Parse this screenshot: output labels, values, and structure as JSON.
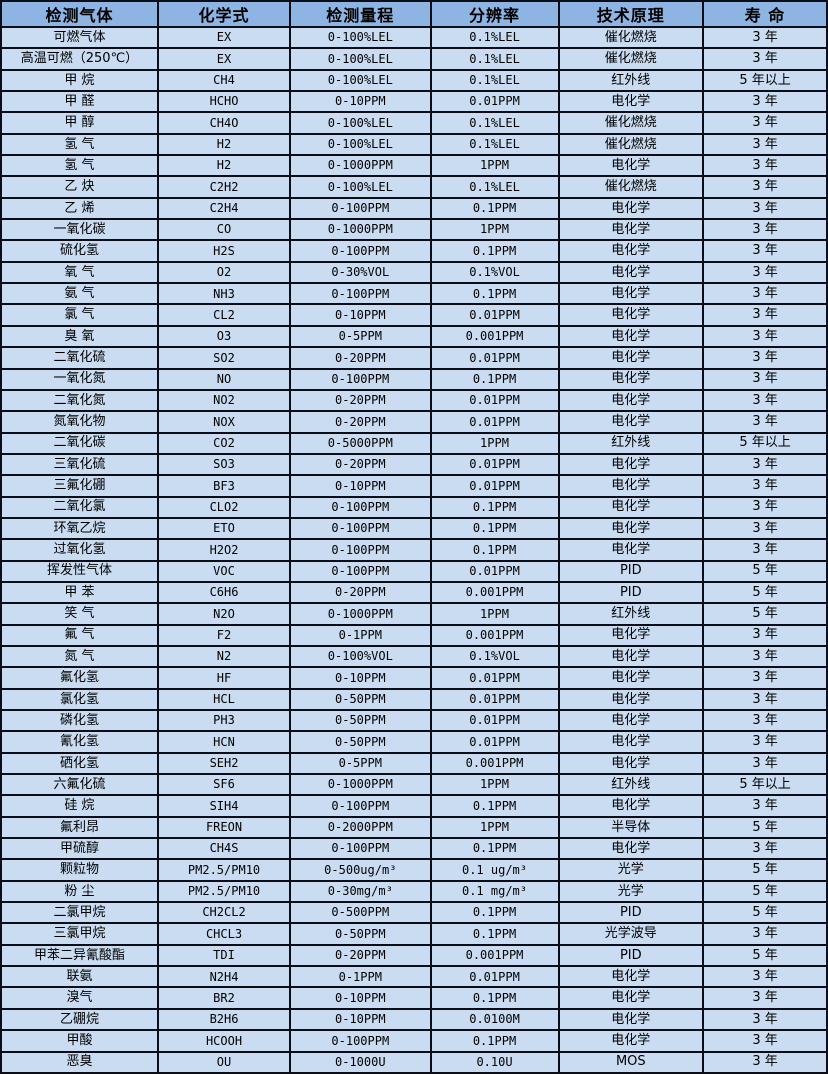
{
  "colors": {
    "header_bg": "#8eb4e3",
    "row_bg": "#c9dcf1",
    "border": "#0d0d18",
    "text": "#000000"
  },
  "table": {
    "columns": [
      {
        "key": "gas",
        "label": "检测气体",
        "mono": false
      },
      {
        "key": "formula",
        "label": "化学式",
        "mono": true
      },
      {
        "key": "range",
        "label": "检测量程",
        "mono": true
      },
      {
        "key": "resolution",
        "label": "分辨率",
        "mono": true
      },
      {
        "key": "principle",
        "label": "技术原理",
        "mono": false
      },
      {
        "key": "lifespan",
        "label": "寿 命",
        "mono": false
      }
    ],
    "rows": [
      [
        "可燃气体",
        "EX",
        "0-100%LEL",
        "0.1%LEL",
        "催化燃烧",
        "3 年"
      ],
      [
        "高温可燃（250℃）",
        "EX",
        "0-100%LEL",
        "0.1%LEL",
        "催化燃烧",
        "3 年"
      ],
      [
        "甲 烷",
        "CH4",
        "0-100%LEL",
        "0.1%LEL",
        "红外线",
        "5 年以上"
      ],
      [
        "甲 醛",
        "HCHO",
        "0-10PPM",
        "0.01PPM",
        "电化学",
        "3 年"
      ],
      [
        "甲 醇",
        "CH4O",
        "0-100%LEL",
        "0.1%LEL",
        "催化燃烧",
        "3 年"
      ],
      [
        "氢 气",
        "H2",
        "0-100%LEL",
        "0.1%LEL",
        "催化燃烧",
        "3 年"
      ],
      [
        "氢 气",
        "H2",
        "0-1000PPM",
        "1PPM",
        "电化学",
        "3 年"
      ],
      [
        "乙 炔",
        "C2H2",
        "0-100%LEL",
        "0.1%LEL",
        "催化燃烧",
        "3 年"
      ],
      [
        "乙 烯",
        "C2H4",
        "0-100PPM",
        "0.1PPM",
        "电化学",
        "3 年"
      ],
      [
        "一氧化碳",
        "CO",
        "0-1000PPM",
        "1PPM",
        "电化学",
        "3 年"
      ],
      [
        "硫化氢",
        "H2S",
        "0-100PPM",
        "0.1PPM",
        "电化学",
        "3 年"
      ],
      [
        "氧 气",
        "O2",
        "0-30%VOL",
        "0.1%VOL",
        "电化学",
        "3 年"
      ],
      [
        "氨 气",
        "NH3",
        "0-100PPM",
        "0.1PPM",
        "电化学",
        "3 年"
      ],
      [
        "氯 气",
        "CL2",
        "0-10PPM",
        "0.01PPM",
        "电化学",
        "3 年"
      ],
      [
        "臭 氧",
        "O3",
        "0-5PPM",
        "0.001PPM",
        "电化学",
        "3 年"
      ],
      [
        "二氧化硫",
        "SO2",
        "0-20PPM",
        "0.01PPM",
        "电化学",
        "3 年"
      ],
      [
        "一氧化氮",
        "NO",
        "0-100PPM",
        "0.1PPM",
        "电化学",
        "3 年"
      ],
      [
        "二氧化氮",
        "NO2",
        "0-20PPM",
        "0.01PPM",
        "电化学",
        "3 年"
      ],
      [
        "氮氧化物",
        "NOX",
        "0-20PPM",
        "0.01PPM",
        "电化学",
        "3 年"
      ],
      [
        "二氧化碳",
        "CO2",
        "0-5000PPM",
        "1PPM",
        "红外线",
        "5 年以上"
      ],
      [
        "三氧化硫",
        "SO3",
        "0-20PPM",
        "0.01PPM",
        "电化学",
        "3 年"
      ],
      [
        "三氟化硼",
        "BF3",
        "0-10PPM",
        "0.01PPM",
        "电化学",
        "3 年"
      ],
      [
        "二氧化氯",
        "CLO2",
        "0-100PPM",
        "0.1PPM",
        "电化学",
        "3 年"
      ],
      [
        "环氧乙烷",
        "ETO",
        "0-100PPM",
        "0.1PPM",
        "电化学",
        "3 年"
      ],
      [
        "过氧化氢",
        "H2O2",
        "0-100PPM",
        "0.1PPM",
        "电化学",
        "3 年"
      ],
      [
        "挥发性气体",
        "VOC",
        "0-100PPM",
        "0.01PPM",
        "PID",
        "5 年"
      ],
      [
        "甲 苯",
        "C6H6",
        "0-20PPM",
        "0.001PPM",
        "PID",
        "5 年"
      ],
      [
        "笑 气",
        "N2O",
        "0-1000PPM",
        "1PPM",
        "红外线",
        "5 年"
      ],
      [
        "氟 气",
        "F2",
        "0-1PPM",
        "0.001PPM",
        "电化学",
        "3 年"
      ],
      [
        "氮 气",
        "N2",
        "0-100%VOL",
        "0.1%VOL",
        "电化学",
        "3 年"
      ],
      [
        "氟化氢",
        "HF",
        "0-10PPM",
        "0.01PPM",
        "电化学",
        "3 年"
      ],
      [
        "氯化氢",
        "HCL",
        "0-50PPM",
        "0.01PPM",
        "电化学",
        "3 年"
      ],
      [
        "磷化氢",
        "PH3",
        "0-50PPM",
        "0.01PPM",
        "电化学",
        "3 年"
      ],
      [
        "氰化氢",
        "HCN",
        "0-50PPM",
        "0.01PPM",
        "电化学",
        "3 年"
      ],
      [
        "硒化氢",
        "SEH2",
        "0-5PPM",
        "0.001PPM",
        "电化学",
        "3 年"
      ],
      [
        "六氟化硫",
        "SF6",
        "0-1000PPM",
        "1PPM",
        "红外线",
        "5 年以上"
      ],
      [
        "硅 烷",
        "SIH4",
        "0-100PPM",
        "0.1PPM",
        "电化学",
        "3 年"
      ],
      [
        "氟利昂",
        "FREON",
        "0-2000PPM",
        "1PPM",
        "半导体",
        "5 年"
      ],
      [
        "甲硫醇",
        "CH4S",
        "0-100PPM",
        "0.1PPM",
        "电化学",
        "3 年"
      ],
      [
        "颗粒物",
        "PM2.5/PM10",
        "0-500ug/m³",
        "0.1 ug/m³",
        "光学",
        "5 年"
      ],
      [
        "粉 尘",
        "PM2.5/PM10",
        "0-30mg/m³",
        "0.1 mg/m³",
        "光学",
        "5 年"
      ],
      [
        "二氯甲烷",
        "CH2CL2",
        "0-500PPM",
        "0.1PPM",
        "PID",
        "5 年"
      ],
      [
        "三氯甲烷",
        "CHCL3",
        "0-50PPM",
        "0.1PPM",
        "光学波导",
        "3 年"
      ],
      [
        "甲苯二异氰酸酯",
        "TDI",
        "0-20PPM",
        "0.001PPM",
        "PID",
        "5 年"
      ],
      [
        "联氨",
        "N2H4",
        "0-1PPM",
        "0.01PPM",
        "电化学",
        "3 年"
      ],
      [
        "溴气",
        "BR2",
        "0-10PPM",
        "0.1PPM",
        "电化学",
        "3 年"
      ],
      [
        "乙硼烷",
        "B2H6",
        "0-10PPM",
        "0.0100M",
        "电化学",
        "3 年"
      ],
      [
        "甲酸",
        "HCOOH",
        "0-100PPM",
        "0.1PPM",
        "电化学",
        "3 年"
      ],
      [
        "恶臭",
        "OU",
        "0-1000U",
        "0.10U",
        "MOS",
        "3 年"
      ]
    ]
  }
}
